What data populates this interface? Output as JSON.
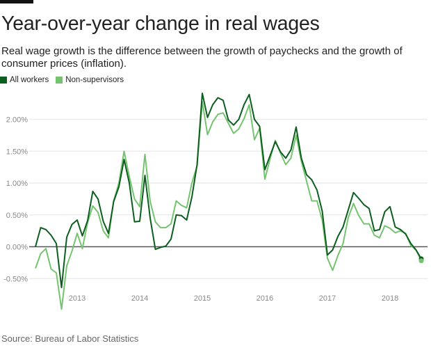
{
  "title": "Year-over-year change in real wages",
  "subtitle": "Real wage growth is the difference between the growth of paychecks and the growth of consumer prices (inflation).",
  "source": "Source: Bureau of Labor Statistics",
  "chart_data": {
    "type": "line",
    "title": "Year-over-year change in real wages",
    "x_start": "2012-05",
    "x_end": "2018-07",
    "x_frequency": "monthly",
    "x_ticks": [
      "2013",
      "2014",
      "2015",
      "2016",
      "2017",
      "2018"
    ],
    "y_ticks": [
      "-0.50%",
      "0.00%",
      "0.50%",
      "1.00%",
      "1.50%",
      "2.00%"
    ],
    "ylim": [
      -1.0,
      2.45
    ],
    "grid": true,
    "legend": "top-left",
    "series": [
      {
        "name": "All workers",
        "color": "#0b5e1e",
        "values": [
          0.0,
          0.3,
          0.27,
          0.18,
          0.05,
          -0.64,
          0.15,
          0.35,
          0.42,
          0.17,
          0.41,
          0.87,
          0.75,
          0.4,
          0.21,
          0.71,
          0.94,
          1.37,
          1.0,
          0.39,
          0.4,
          1.12,
          0.45,
          -0.04,
          -0.01,
          0.01,
          0.12,
          0.5,
          0.49,
          0.42,
          0.78,
          1.29,
          2.41,
          2.03,
          2.23,
          2.34,
          2.3,
          1.99,
          1.91,
          2.0,
          2.23,
          2.39,
          2.0,
          1.89,
          1.21,
          1.43,
          1.65,
          1.49,
          1.39,
          1.52,
          1.88,
          1.39,
          1.13,
          1.05,
          0.89,
          0.56,
          -0.13,
          -0.05,
          0.16,
          0.31,
          0.58,
          0.85,
          0.76,
          0.66,
          0.6,
          0.25,
          0.27,
          0.55,
          0.63,
          0.31,
          0.27,
          0.2,
          0.05,
          -0.05,
          -0.19
        ]
      },
      {
        "name": "Non-supervisors",
        "color": "#74c46f",
        "values": [
          -0.34,
          -0.11,
          -0.03,
          -0.35,
          -0.41,
          -0.98,
          -0.3,
          -0.07,
          0.21,
          -0.03,
          0.38,
          0.64,
          0.54,
          0.25,
          0.14,
          0.72,
          1.0,
          1.5,
          1.1,
          0.75,
          0.63,
          1.45,
          0.71,
          0.39,
          0.3,
          0.3,
          0.36,
          0.72,
          0.65,
          0.61,
          1.0,
          1.27,
          2.28,
          1.76,
          1.96,
          2.08,
          2.1,
          1.94,
          1.78,
          1.85,
          2.01,
          2.23,
          1.68,
          1.86,
          1.06,
          1.38,
          1.67,
          1.47,
          1.29,
          1.39,
          1.75,
          1.34,
          1.03,
          0.72,
          0.72,
          0.42,
          -0.18,
          -0.37,
          -0.14,
          0.05,
          0.46,
          0.68,
          0.49,
          0.36,
          0.36,
          0.18,
          0.14,
          0.33,
          0.29,
          0.22,
          0.25,
          0.21,
          0.02,
          -0.05,
          -0.22
        ]
      }
    ]
  }
}
